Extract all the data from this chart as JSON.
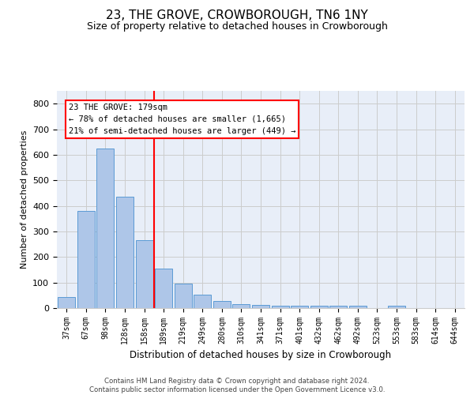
{
  "title": "23, THE GROVE, CROWBOROUGH, TN6 1NY",
  "subtitle": "Size of property relative to detached houses in Crowborough",
  "xlabel": "Distribution of detached houses by size in Crowborough",
  "ylabel": "Number of detached properties",
  "footnote": "Contains HM Land Registry data © Crown copyright and database right 2024.\nContains public sector information licensed under the Open Government Licence v3.0.",
  "bar_labels": [
    "37sqm",
    "67sqm",
    "98sqm",
    "128sqm",
    "158sqm",
    "189sqm",
    "219sqm",
    "249sqm",
    "280sqm",
    "310sqm",
    "341sqm",
    "371sqm",
    "401sqm",
    "432sqm",
    "462sqm",
    "492sqm",
    "523sqm",
    "553sqm",
    "583sqm",
    "614sqm",
    "644sqm"
  ],
  "bar_values": [
    43,
    380,
    623,
    435,
    265,
    155,
    95,
    52,
    28,
    15,
    12,
    10,
    10,
    10,
    10,
    8,
    0,
    8,
    0,
    0,
    0
  ],
  "bar_color": "#aec6e8",
  "bar_edge_color": "#5b9bd5",
  "property_line_label": "23 THE GROVE: 179sqm",
  "annotation_line1": "← 78% of detached houses are smaller (1,665)",
  "annotation_line2": "21% of semi-detached houses are larger (449) →",
  "annotation_box_color": "white",
  "annotation_box_edge": "red",
  "vline_color": "red",
  "ylim": [
    0,
    850
  ],
  "yticks": [
    0,
    100,
    200,
    300,
    400,
    500,
    600,
    700,
    800
  ],
  "grid_color": "#cccccc",
  "background_color": "#e8eef8",
  "title_fontsize": 11,
  "subtitle_fontsize": 9
}
